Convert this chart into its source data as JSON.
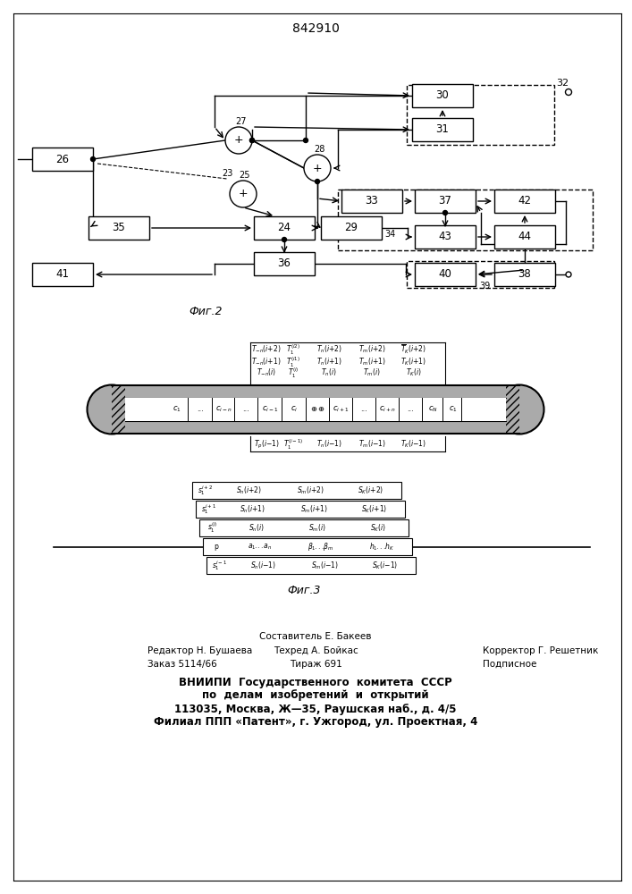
{
  "title": "842910",
  "fig2_label": "Фиг.2",
  "fig3_label": "Фиг.3",
  "background_color": "#ffffff",
  "line_color": "#000000"
}
